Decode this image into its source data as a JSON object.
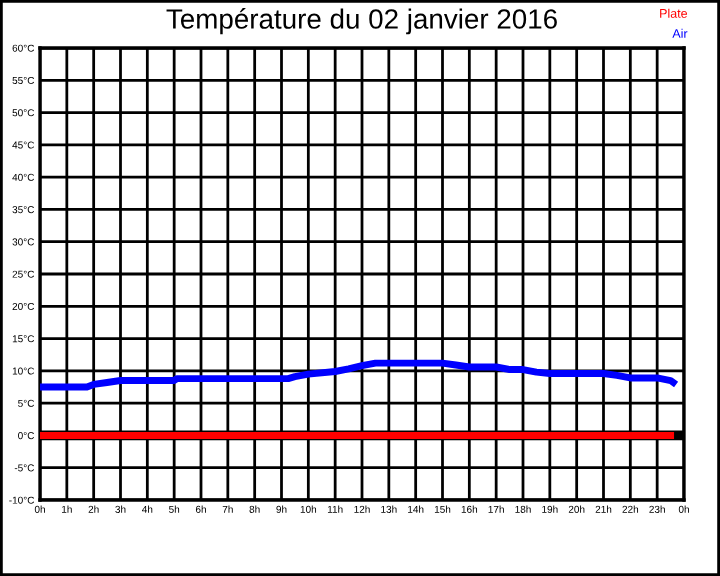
{
  "chart_data": {
    "type": "line",
    "title": "Température du 02 janvier 2016",
    "series": [
      {
        "name": "Plate",
        "color": "#ff0000",
        "x": [
          "2016-01-02T00:00",
          "2016-01-02T01:00",
          "2016-01-02T02:00",
          "2016-01-02T03:00",
          "2016-01-02T04:00",
          "2016-01-02T05:00",
          "2016-01-02T06:00",
          "2016-01-02T07:00",
          "2016-01-02T08:00",
          "2016-01-02T09:00",
          "2016-01-02T10:00",
          "2016-01-02T11:00",
          "2016-01-02T12:00",
          "2016-01-02T13:00",
          "2016-01-02T14:00",
          "2016-01-02T15:00",
          "2016-01-02T16:00",
          "2016-01-02T17:00",
          "2016-01-02T18:00",
          "2016-01-02T19:00",
          "2016-01-02T20:00",
          "2016-01-02T21:00",
          "2016-01-02T22:00",
          "2016-01-02T23:00",
          "2016-01-02T23:30"
        ],
        "values": [
          0,
          0,
          0,
          0,
          0,
          0,
          0,
          0,
          0,
          0,
          0,
          0,
          0,
          0,
          0,
          0,
          0,
          0,
          0,
          0,
          0,
          0,
          0,
          0,
          0
        ]
      },
      {
        "name": "Air",
        "color": "#0000ff",
        "x": [
          "2016-01-02T00:00",
          "2016-01-02T01:45",
          "2016-01-02T02:00",
          "2016-01-02T02:30",
          "2016-01-02T03:00",
          "2016-01-02T05:00",
          "2016-01-02T05:06",
          "2016-01-02T09:15",
          "2016-01-02T09:30",
          "2016-01-02T10:00",
          "2016-01-02T11:00",
          "2016-01-02T11:30",
          "2016-01-02T12:00",
          "2016-01-02T12:30",
          "2016-01-02T15:00",
          "2016-01-02T15:30",
          "2016-01-02T16:00",
          "2016-01-02T17:00",
          "2016-01-02T17:30",
          "2016-01-02T18:00",
          "2016-01-02T18:30",
          "2016-01-02T19:00",
          "2016-01-02T21:00",
          "2016-01-02T21:30",
          "2016-01-02T22:00",
          "2016-01-02T23:00",
          "2016-01-02T23:30",
          "2016-01-02T23:36"
        ],
        "values": [
          7.5,
          7.5,
          7.9,
          8.2,
          8.5,
          8.5,
          8.8,
          8.8,
          9.1,
          9.5,
          9.9,
          10.3,
          10.8,
          11.2,
          11.2,
          10.9,
          10.6,
          10.6,
          10.2,
          10.2,
          9.8,
          9.6,
          9.6,
          9.3,
          8.9,
          8.9,
          8.5,
          8.2
        ]
      }
    ],
    "xlim": [
      "2016-01-02T00:00",
      "2016-01-03T00:00"
    ],
    "xticks": [
      {
        "value": "2016-01-02T00:00",
        "label": "0h"
      },
      {
        "value": "2016-01-02T01:00",
        "label": "1h"
      },
      {
        "value": "2016-01-02T02:00",
        "label": "2h"
      },
      {
        "value": "2016-01-02T03:00",
        "label": "3h"
      },
      {
        "value": "2016-01-02T04:00",
        "label": "4h"
      },
      {
        "value": "2016-01-02T05:00",
        "label": "5h"
      },
      {
        "value": "2016-01-02T06:00",
        "label": "6h"
      },
      {
        "value": "2016-01-02T07:00",
        "label": "7h"
      },
      {
        "value": "2016-01-02T08:00",
        "label": "8h"
      },
      {
        "value": "2016-01-02T09:00",
        "label": "9h"
      },
      {
        "value": "2016-01-02T10:00",
        "label": "10h"
      },
      {
        "value": "2016-01-02T11:00",
        "label": "11h"
      },
      {
        "value": "2016-01-02T12:00",
        "label": "12h"
      },
      {
        "value": "2016-01-02T13:00",
        "label": "13h"
      },
      {
        "value": "2016-01-02T14:00",
        "label": "14h"
      },
      {
        "value": "2016-01-02T15:00",
        "label": "15h"
      },
      {
        "value": "2016-01-02T16:00",
        "label": "16h"
      },
      {
        "value": "2016-01-02T17:00",
        "label": "17h"
      },
      {
        "value": "2016-01-02T18:00",
        "label": "18h"
      },
      {
        "value": "2016-01-02T19:00",
        "label": "19h"
      },
      {
        "value": "2016-01-02T20:00",
        "label": "20h"
      },
      {
        "value": "2016-01-02T21:00",
        "label": "21h"
      },
      {
        "value": "2016-01-02T22:00",
        "label": "22h"
      },
      {
        "value": "2016-01-02T23:00",
        "label": "23h"
      },
      {
        "value": "2016-01-03T00:00",
        "label": "0h"
      }
    ],
    "ylim": [
      -10,
      60
    ],
    "yticks": [
      {
        "value": -10,
        "label": "-10°C"
      },
      {
        "value": -5,
        "label": "-5°C"
      },
      {
        "value": 0,
        "label": "0°C"
      },
      {
        "value": 5,
        "label": "5°C"
      },
      {
        "value": 10,
        "label": "10°C"
      },
      {
        "value": 15,
        "label": "15°C"
      },
      {
        "value": 20,
        "label": "20°C"
      },
      {
        "value": 25,
        "label": "25°C"
      },
      {
        "value": 30,
        "label": "30°C"
      },
      {
        "value": 35,
        "label": "35°C"
      },
      {
        "value": 40,
        "label": "40°C"
      },
      {
        "value": 45,
        "label": "45°C"
      },
      {
        "value": 50,
        "label": "50°C"
      },
      {
        "value": 55,
        "label": "55°C"
      },
      {
        "value": 60,
        "label": "60°C"
      }
    ],
    "ref_lines": [
      {
        "axis": "y",
        "value": 0,
        "color": "#000000"
      }
    ],
    "grid": true,
    "legend": "top right",
    "marker": "none",
    "line_style": "solid"
  }
}
